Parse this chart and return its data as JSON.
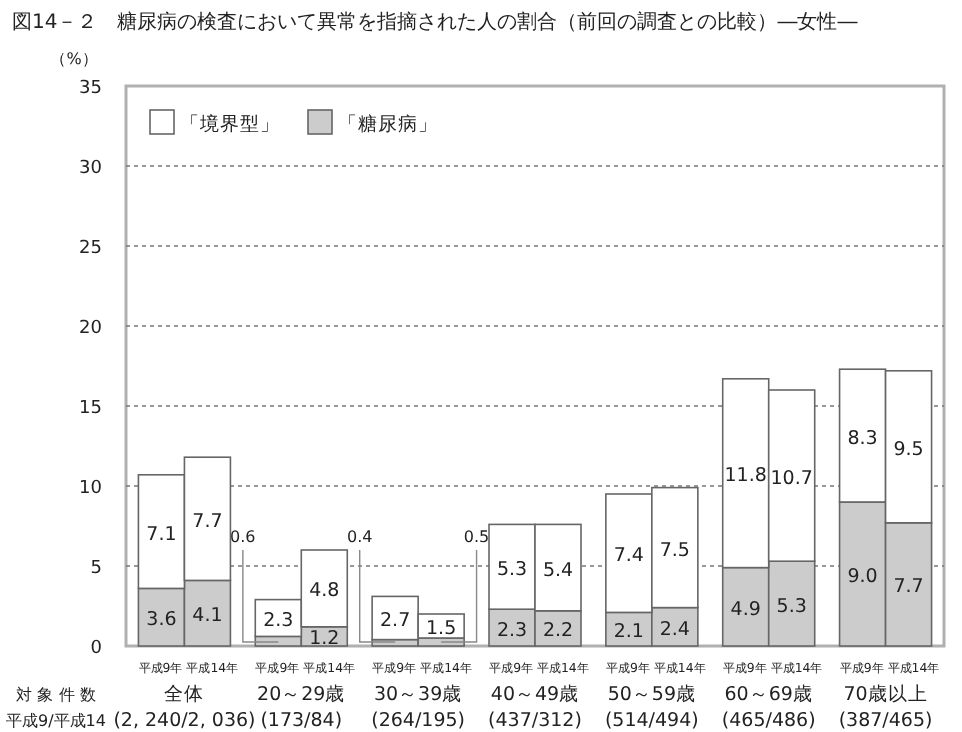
{
  "chart_data": {
    "type": "bar",
    "stacked": true,
    "title": "図14－２　糖尿病の検査において異常を指摘された人の割合（前回の調査との比較）―女性―",
    "ylabel": "（%）",
    "categories": [
      "平成9年",
      "平成14年",
      "平成9年",
      "平成14年",
      "平成9年",
      "平成14年",
      "平成9年",
      "平成14年",
      "平成9年",
      "平成14年",
      "平成9年",
      "平成14年",
      "平成9年",
      "平成14年"
    ],
    "series": [
      {
        "name": "「糖尿病」",
        "color": "#cccccc",
        "values": [
          3.6,
          4.1,
          0.6,
          1.2,
          0.4,
          0.5,
          2.3,
          2.2,
          2.1,
          2.4,
          4.9,
          5.3,
          9.0,
          7.7
        ],
        "value_labels": [
          "3.6",
          "4.1",
          "0.6",
          "1.2",
          "0.4",
          "0.5",
          "2.3",
          "2.2",
          "2.1",
          "2.4",
          "4.9",
          "5.3",
          "9.0",
          "7.7"
        ]
      },
      {
        "name": "「境界型」",
        "color": "#ffffff",
        "values": [
          7.1,
          7.7,
          2.3,
          4.8,
          2.7,
          1.5,
          5.3,
          5.4,
          7.4,
          7.5,
          11.8,
          10.7,
          8.3,
          9.5
        ],
        "value_labels": [
          "7.1",
          "7.7",
          "2.3",
          "4.8",
          "2.7",
          "1.5",
          "5.3",
          "5.4",
          "7.4",
          "7.5",
          "11.8",
          "10.7",
          "8.3",
          "9.5"
        ]
      }
    ],
    "ylim": [
      0,
      35
    ],
    "yticks": [
      0,
      5,
      10,
      15,
      20,
      25,
      30,
      35
    ],
    "grid": "y",
    "legend": "top left",
    "annotations": [
      "対 象 件 数",
      "平成9/平成14",
      "全体\n(2, 240/2, 036)",
      "20～29歳\n(173/84)",
      "30～39歳\n(264/195)",
      "40～49歳\n(437/312)",
      "50～59歳\n(514/494)",
      "60～69歳\n(465/486)",
      "70歳以上\n(387/465)"
    ]
  }
}
